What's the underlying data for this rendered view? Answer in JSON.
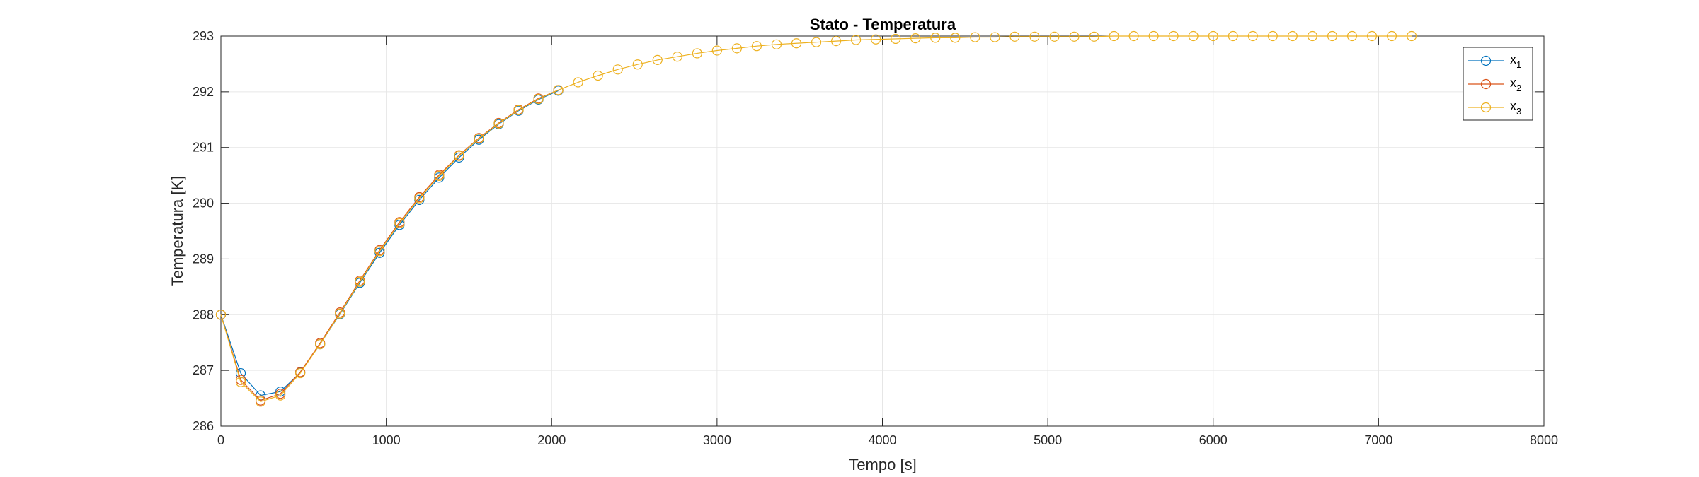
{
  "chart_data": {
    "type": "line",
    "title": "Stato - Temperatura",
    "xlabel": "Tempo [s]",
    "ylabel": "Temperatura [K]",
    "xlim": [
      0,
      8000
    ],
    "ylim": [
      286,
      293
    ],
    "xticks": [
      0,
      1000,
      2000,
      3000,
      4000,
      5000,
      6000,
      7000,
      8000
    ],
    "yticks": [
      286,
      287,
      288,
      289,
      290,
      291,
      292,
      293
    ],
    "grid": true,
    "legend_position": "top-right",
    "series": [
      {
        "name": "x",
        "subscript": "1",
        "color": "#0072BD",
        "x": [
          0,
          120,
          240,
          360,
          480,
          600,
          720,
          840,
          960,
          1080,
          1200,
          1320,
          1440,
          1560,
          1680,
          1800,
          1920,
          2040
        ],
        "y": [
          288.0,
          286.95,
          286.55,
          286.62,
          286.96,
          287.47,
          288.01,
          288.57,
          289.11,
          289.61,
          290.06,
          290.46,
          290.82,
          291.14,
          291.42,
          291.66,
          291.86,
          292.02
        ]
      },
      {
        "name": "x",
        "subscript": "2",
        "color": "#D95319",
        "x": [
          0,
          120,
          240,
          360,
          480,
          600,
          720,
          840,
          960,
          1080,
          1200,
          1320,
          1440,
          1560,
          1680,
          1800,
          1920,
          2040
        ],
        "y": [
          288.0,
          286.83,
          286.46,
          286.58,
          286.97,
          287.49,
          288.04,
          288.61,
          289.16,
          289.66,
          290.11,
          290.51,
          290.86,
          291.17,
          291.44,
          291.68,
          291.88,
          292.03
        ]
      },
      {
        "name": "x",
        "subscript": "3",
        "color": "#EDB120",
        "x": [
          0,
          120,
          240,
          360,
          480,
          600,
          720,
          840,
          960,
          1080,
          1200,
          1320,
          1440,
          1560,
          1680,
          1800,
          1920,
          2040,
          2160,
          2280,
          2400,
          2520,
          2640,
          2760,
          2880,
          3000,
          3120,
          3240,
          3360,
          3480,
          3600,
          3720,
          3840,
          3960,
          4080,
          4200,
          4320,
          4440,
          4560,
          4680,
          4800,
          4920,
          5040,
          5160,
          5280,
          5400,
          5520,
          5640,
          5760,
          5880,
          6000,
          6120,
          6240,
          6360,
          6480,
          6600,
          6720,
          6840,
          6960,
          7080,
          7200
        ],
        "y": [
          288.0,
          286.79,
          286.44,
          286.55,
          286.95,
          287.47,
          288.02,
          288.59,
          289.14,
          289.64,
          290.09,
          290.49,
          290.85,
          291.16,
          291.43,
          291.67,
          291.87,
          292.03,
          292.17,
          292.29,
          292.4,
          292.49,
          292.57,
          292.63,
          292.69,
          292.74,
          292.78,
          292.82,
          292.85,
          292.87,
          292.89,
          292.91,
          292.93,
          292.94,
          292.95,
          292.96,
          292.97,
          292.97,
          292.98,
          292.98,
          292.99,
          292.99,
          292.99,
          292.99,
          292.99,
          293.0,
          293.0,
          293.0,
          293.0,
          293.0,
          293.0,
          293.0,
          293.0,
          293.0,
          293.0,
          293.0,
          293.0,
          293.0,
          293.0,
          293.0,
          293.0
        ]
      }
    ]
  }
}
